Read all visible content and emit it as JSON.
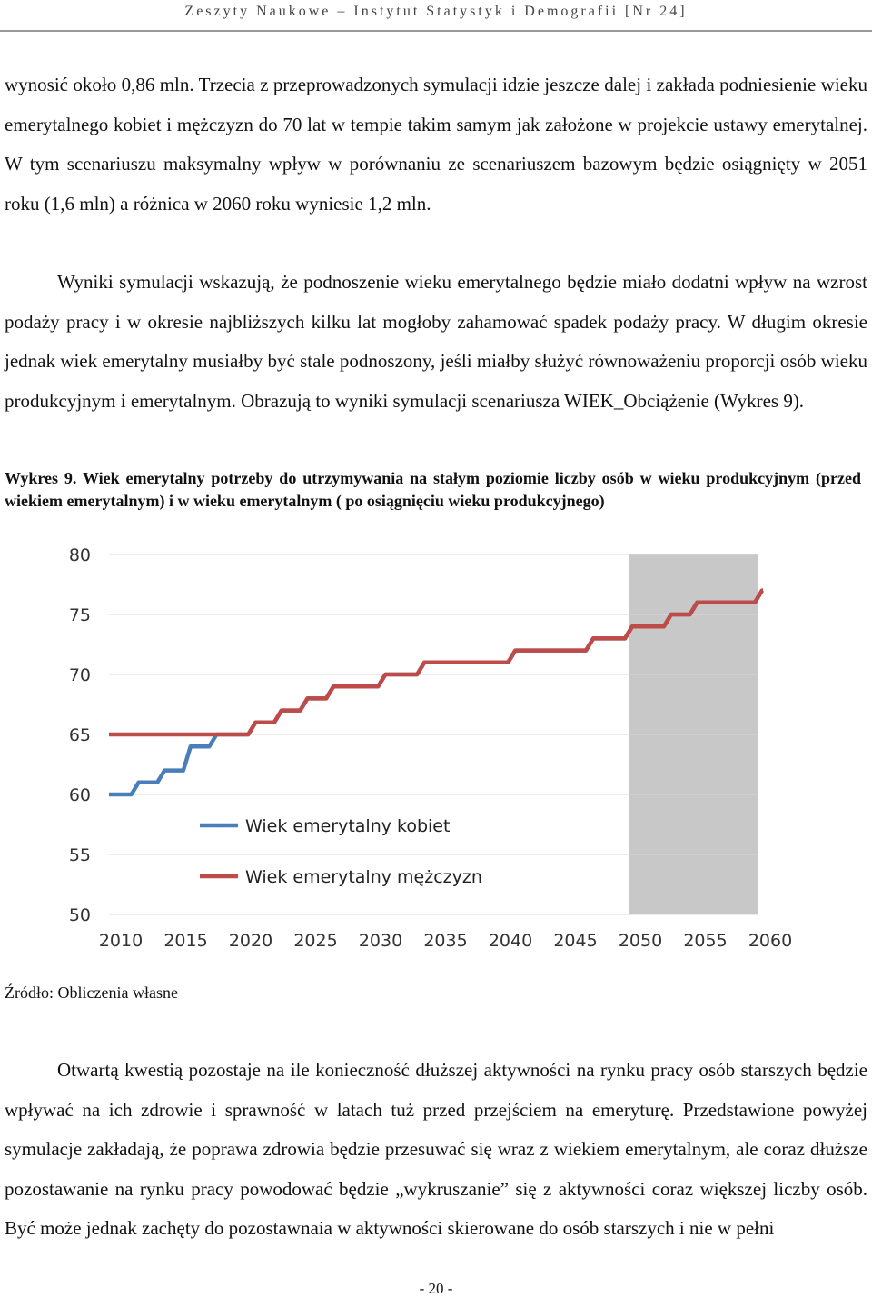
{
  "header": {
    "text": "Zeszyty Naukowe – Instytut Statystyk i Demografii [Nr 24]"
  },
  "paragraphs": {
    "p1": "wynosić około 0,86 mln. Trzecia z przeprowadzonych symulacji idzie jeszcze dalej i zakłada podniesienie wieku emerytalnego kobiet i mężczyzn do 70 lat w tempie takim samym jak założone w projekcie ustawy emerytalnej. W tym scenariuszu maksymalny wpływ w porównaniu ze scenariuszem bazowym będzie osiągnięty w 2051 roku (1,6 mln) a różnica w 2060 roku wyniesie 1,2 mln.",
    "p2": "Wyniki symulacji wskazują, że podnoszenie wieku emerytalnego będzie miało dodatni wpływ na wzrost podaży pracy i w okresie najbliższych kilku lat mogłoby zahamować spadek podaży pracy. W długim okresie jednak wiek emerytalny musiałby być stale podnoszony, jeśli miałby służyć równoważeniu proporcji osób wieku produkcyjnym i emerytalnym. Obrazują to wyniki symulacji scenariusza WIEK_Obciążenie (Wykres 9).",
    "p3": "Otwartą kwestią pozostaje na ile konieczność dłuższej aktywności na rynku pracy osób starszych będzie wpływać na ich zdrowie i sprawność w latach tuż przed przejściem na emeryturę. Przedstawione powyżej symulacje zakładają, że poprawa zdrowia będzie przesuwać się wraz z wiekiem emerytalnym, ale coraz dłuższe pozostawanie na rynku pracy powodować będzie „wykruszanie” się z aktywności coraz większej liczby osób. Być może jednak zachęty do pozostawnaia w aktywności skierowane do osób starszych i nie w pełni"
  },
  "caption": "Wykres 9. Wiek emerytalny potrzeby do utrzymywania na stałym poziomie liczby osób w wieku produkcyjnym (przed wiekiem emerytalnym) i w wieku emerytalnym ( po osiągnięciu wieku produkcyjnego)",
  "source": "Źródło: Obliczenia własne",
  "page_number": "- 20 -",
  "chart_data": {
    "type": "line",
    "title": "",
    "xlabel": "",
    "ylabel": "",
    "xlim": [
      2010,
      2060
    ],
    "ylim": [
      50,
      80
    ],
    "x_ticks": [
      2010,
      2015,
      2020,
      2025,
      2030,
      2035,
      2040,
      2045,
      2050,
      2055,
      2060
    ],
    "y_ticks": [
      50,
      55,
      60,
      65,
      70,
      75,
      80
    ],
    "shaded_region": {
      "from": 2050,
      "to": 2060,
      "color": "#c8c8c8"
    },
    "grid": true,
    "legend_position": "inside-bottom-left",
    "x": [
      2010,
      2011,
      2012,
      2013,
      2014,
      2015,
      2016,
      2017,
      2018,
      2019,
      2020,
      2021,
      2022,
      2023,
      2024,
      2025,
      2026,
      2027,
      2028,
      2029,
      2030,
      2031,
      2032,
      2033,
      2034,
      2035,
      2036,
      2037,
      2038,
      2039,
      2040,
      2041,
      2042,
      2043,
      2044,
      2045,
      2046,
      2047,
      2048,
      2049,
      2050,
      2051,
      2052,
      2053,
      2054,
      2055,
      2056,
      2057,
      2058,
      2059,
      2060
    ],
    "series": [
      {
        "name": "Wiek emerytalny kobiet",
        "color": "#4a7ebb",
        "values": [
          60,
          60,
          61,
          61,
          62,
          62,
          64,
          64,
          65,
          65,
          65,
          66,
          66,
          67,
          67,
          68,
          68,
          69,
          69,
          69,
          69,
          70,
          70,
          70,
          71,
          71,
          71,
          71,
          71,
          71,
          71,
          72,
          72,
          72,
          72,
          72,
          72,
          73,
          73,
          73,
          74,
          74,
          74,
          75,
          75,
          76,
          76,
          76,
          76,
          76,
          77
        ]
      },
      {
        "name": "Wiek emerytalny mężczyzn",
        "color": "#be4b48",
        "values": [
          65,
          65,
          65,
          65,
          65,
          65,
          65,
          65,
          65,
          65,
          65,
          66,
          66,
          67,
          67,
          68,
          68,
          69,
          69,
          69,
          69,
          70,
          70,
          70,
          71,
          71,
          71,
          71,
          71,
          71,
          71,
          72,
          72,
          72,
          72,
          72,
          72,
          73,
          73,
          73,
          74,
          74,
          74,
          75,
          75,
          76,
          76,
          76,
          76,
          76,
          77
        ]
      }
    ]
  }
}
